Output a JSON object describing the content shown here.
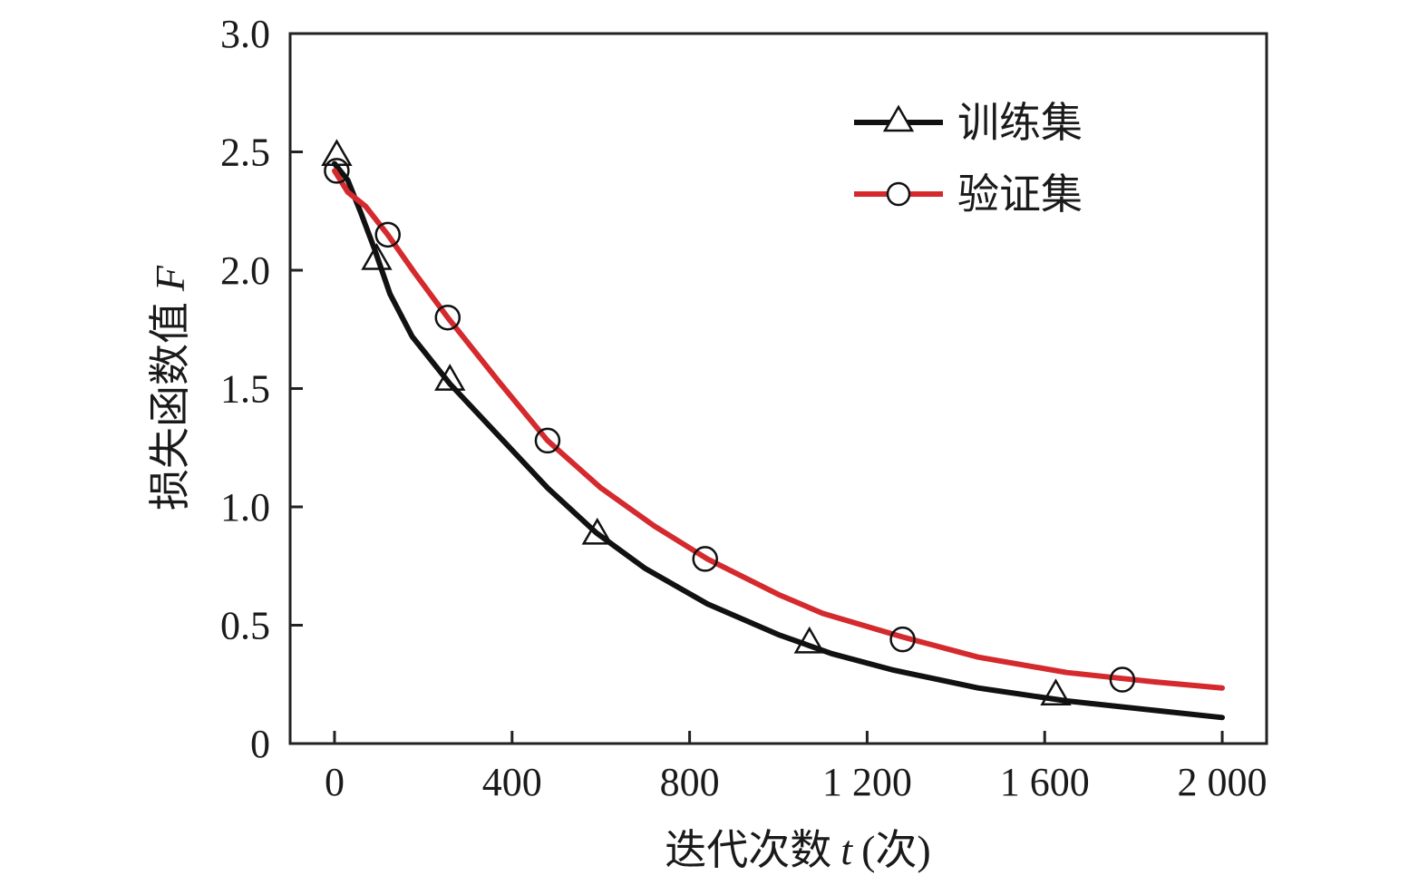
{
  "chart_data": {
    "type": "line",
    "xlabel": "迭代次数",
    "xlabel_var": "t",
    "xlabel_unit": "(次)",
    "ylabel": "损失函数值",
    "ylabel_var": "F",
    "xlim": [
      -100,
      2100
    ],
    "ylim": [
      0,
      3.0
    ],
    "x_ticks": [
      {
        "value": 0,
        "label": "0"
      },
      {
        "value": 400,
        "label": "400"
      },
      {
        "value": 800,
        "label": "800"
      },
      {
        "value": 1200,
        "label": "1 200"
      },
      {
        "value": 1600,
        "label": "1 600"
      },
      {
        "value": 2000,
        "label": "2 000"
      }
    ],
    "y_ticks": [
      {
        "value": 0,
        "label": "0"
      },
      {
        "value": 0.5,
        "label": "0.5"
      },
      {
        "value": 1.0,
        "label": "1.0"
      },
      {
        "value": 1.5,
        "label": "1.5"
      },
      {
        "value": 2.0,
        "label": "2.0"
      },
      {
        "value": 2.5,
        "label": "2.5"
      },
      {
        "value": 3.0,
        "label": "3.0"
      }
    ],
    "legend_position": "top-right",
    "series": [
      {
        "name": "训练集",
        "color": "#111111",
        "marker": "triangle",
        "curve": [
          {
            "x": 0,
            "y": 2.45
          },
          {
            "x": 30,
            "y": 2.38
          },
          {
            "x": 60,
            "y": 2.24
          },
          {
            "x": 90,
            "y": 2.09
          },
          {
            "x": 125,
            "y": 1.9
          },
          {
            "x": 175,
            "y": 1.72
          },
          {
            "x": 260,
            "y": 1.52
          },
          {
            "x": 380,
            "y": 1.28
          },
          {
            "x": 480,
            "y": 1.08
          },
          {
            "x": 590,
            "y": 0.89
          },
          {
            "x": 700,
            "y": 0.74
          },
          {
            "x": 840,
            "y": 0.59
          },
          {
            "x": 1000,
            "y": 0.46
          },
          {
            "x": 1120,
            "y": 0.38
          },
          {
            "x": 1260,
            "y": 0.31
          },
          {
            "x": 1450,
            "y": 0.235
          },
          {
            "x": 1650,
            "y": 0.18
          },
          {
            "x": 1850,
            "y": 0.14
          },
          {
            "x": 2000,
            "y": 0.11
          }
        ],
        "markers": [
          {
            "x": 5,
            "y": 2.48
          },
          {
            "x": 95,
            "y": 2.04
          },
          {
            "x": 260,
            "y": 1.53
          },
          {
            "x": 592,
            "y": 0.88
          },
          {
            "x": 1070,
            "y": 0.42
          },
          {
            "x": 1625,
            "y": 0.2
          }
        ]
      },
      {
        "name": "验证集",
        "color": "#d42a2e",
        "marker": "circle",
        "curve": [
          {
            "x": 0,
            "y": 2.42
          },
          {
            "x": 30,
            "y": 2.33
          },
          {
            "x": 70,
            "y": 2.27
          },
          {
            "x": 120,
            "y": 2.15
          },
          {
            "x": 180,
            "y": 1.99
          },
          {
            "x": 255,
            "y": 1.8
          },
          {
            "x": 370,
            "y": 1.53
          },
          {
            "x": 480,
            "y": 1.28
          },
          {
            "x": 600,
            "y": 1.08
          },
          {
            "x": 720,
            "y": 0.92
          },
          {
            "x": 840,
            "y": 0.78
          },
          {
            "x": 1000,
            "y": 0.63
          },
          {
            "x": 1100,
            "y": 0.55
          },
          {
            "x": 1280,
            "y": 0.45
          },
          {
            "x": 1450,
            "y": 0.365
          },
          {
            "x": 1650,
            "y": 0.3
          },
          {
            "x": 1850,
            "y": 0.26
          },
          {
            "x": 2000,
            "y": 0.235
          }
        ],
        "markers": [
          {
            "x": 5,
            "y": 2.42
          },
          {
            "x": 120,
            "y": 2.15
          },
          {
            "x": 255,
            "y": 1.8
          },
          {
            "x": 480,
            "y": 1.28
          },
          {
            "x": 835,
            "y": 0.78
          },
          {
            "x": 1280,
            "y": 0.44
          },
          {
            "x": 1775,
            "y": 0.27
          }
        ]
      }
    ]
  }
}
